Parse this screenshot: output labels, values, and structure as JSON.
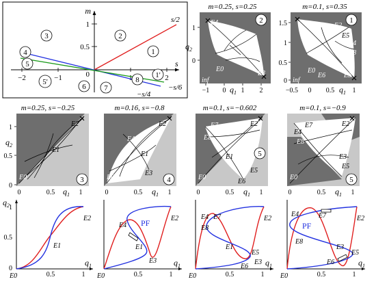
{
  "colors": {
    "dark": "#6e6e6e",
    "light": "#c8c8c8",
    "red": "#e01e1e",
    "blue": "#2231e0",
    "green": "#1a9a1a",
    "white": "#ffffff"
  },
  "top_left": {
    "axis_m": "m",
    "axis_s": "s",
    "ticks_m": [
      "1",
      "0.5",
      "0"
    ],
    "ticks_s": [
      "−2",
      "−1",
      "0",
      "1",
      "2"
    ],
    "line_labels": [
      "s/2",
      "−s/6",
      "−s/4"
    ],
    "regions": [
      "1",
      "2",
      "3",
      "4",
      "5",
      "5'",
      "6",
      "7",
      "8",
      "1'"
    ]
  },
  "top_panels": [
    {
      "title": "m=0.25, s=0.25",
      "region": "2",
      "ylabel": "q",
      "ylabel_sub": "2",
      "xlabel": "q",
      "xlabel_sub": "1",
      "yticks": [
        "1",
        "0"
      ],
      "xticks": [
        "−1",
        "0",
        "1",
        "2"
      ],
      "points": [
        "E4",
        "E3",
        "E0",
        "inf"
      ]
    },
    {
      "title": "m=0.1, s=0.35",
      "region": "1",
      "xlabel": "q",
      "xlabel_sub": "1",
      "yticks": [
        "1.5",
        "1",
        "0.5",
        "0"
      ],
      "xticks": [
        "−0.5",
        "0",
        "0.5",
        "1"
      ],
      "points": [
        "E2",
        "E5",
        "E4",
        "E8",
        "E3",
        "E0",
        "E6",
        "inf"
      ]
    }
  ],
  "mid_panels": [
    {
      "title": "m=0.25, s=−0.25",
      "region": "3",
      "ylabel": "q",
      "ylabel_sub": "2",
      "xlabel": "q",
      "xlabel_sub": "1",
      "yticks": [
        "1",
        "0.5",
        "0"
      ],
      "xticks": [
        "0",
        "0.5",
        "1"
      ],
      "points": [
        "E2",
        "E1",
        "E0"
      ]
    },
    {
      "title": "m=0.16, s=−0.8",
      "region": "4",
      "xlabel": "q",
      "xlabel_sub": "1",
      "xticks": [
        "0",
        "0.5",
        "1"
      ],
      "points": [
        "E2",
        "E4",
        "E1",
        "E3",
        "E0"
      ]
    },
    {
      "title": "m=0.1, s=−0.602",
      "region": "5",
      "xlabel": "q",
      "xlabel_sub": "1",
      "xticks": [
        "0",
        "0.5",
        "1"
      ],
      "points": [
        "E2",
        "E7",
        "E8",
        "E1",
        "E5",
        "E6",
        "E0"
      ]
    },
    {
      "title": "m=0.1, s=−0.9",
      "region": "5",
      "xlabel": "q",
      "xlabel_sub": "1",
      "xticks": [
        "0",
        "0.5",
        "1"
      ],
      "points": [
        "E2",
        "E7",
        "E4",
        "E8",
        "E3",
        "E5",
        "E0"
      ]
    }
  ],
  "bottom_panels": [
    {
      "ylabel": "q",
      "ylabel_sub": "2",
      "xlabel": "q",
      "xlabel_sub": "1",
      "yticks": [
        "1",
        "0.5",
        "0"
      ],
      "xticks": [
        "0",
        "0.5",
        "1"
      ],
      "origin": "E0",
      "points": [
        "E2",
        "E1"
      ]
    },
    {
      "xlabel": "q",
      "xlabel_sub": "1",
      "xticks": [
        "0",
        "0.5",
        "1"
      ],
      "origin": "E0",
      "pf": "PF",
      "points": [
        "E2",
        "E4",
        "E1",
        "E3"
      ]
    },
    {
      "xlabel": "q",
      "xlabel_sub": "1",
      "xticks": [
        "0",
        "0.5",
        "1"
      ],
      "origin": "E0",
      "points": [
        "E2",
        "E4",
        "E7",
        "E8",
        "E1",
        "E5",
        "E3",
        "E6"
      ]
    },
    {
      "xlabel": "q",
      "xlabel_sub": "1",
      "xticks": [
        "0",
        "0.5",
        "1"
      ],
      "origin": "E0",
      "pf": "PF",
      "points": [
        "E4",
        "E7",
        "E2",
        "E8",
        "E3",
        "E5",
        "E6"
      ]
    }
  ]
}
